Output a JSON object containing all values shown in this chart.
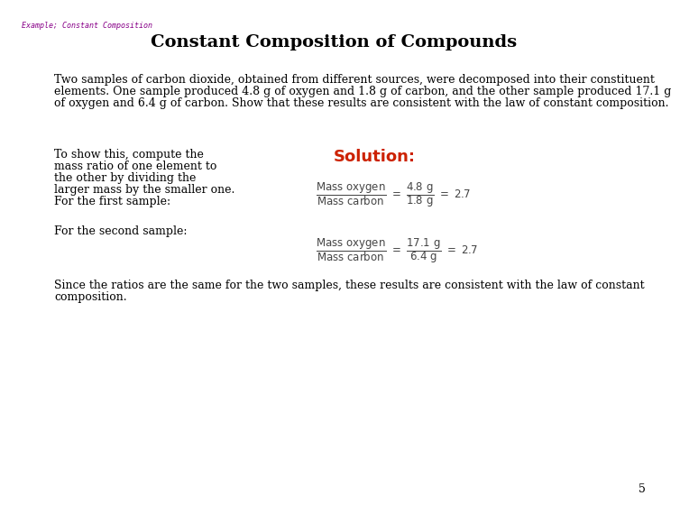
{
  "background_color": "#ffffff",
  "header_label": "Example; Constant Composition",
  "header_color": "#880088",
  "header_fontsize": 6,
  "title": "Constant Composition of Compounds",
  "title_fontsize": 14,
  "body_text_line1": "Two samples of carbon dioxide, obtained from different sources, were decomposed into their constituent",
  "body_text_line2": "elements. One sample produced 4.8 g of oxygen and 1.8 g of carbon, and the other sample produced 17.1 g",
  "body_text_line3": "of oxygen and 6.4 g of carbon. Show that these results are consistent with the law of constant composition.",
  "body_fontsize": 9,
  "left_text_lines": [
    "To show this, compute the",
    "mass ratio of one element to",
    "the other by dividing the",
    "larger mass by the smaller one.",
    "For the first sample:"
  ],
  "left2_text": "For the second sample:",
  "solution_label": "Solution:",
  "solution_color": "#cc2200",
  "solution_fontsize": 13,
  "conclusion_line1": "Since the ratios are the same for the two samples, these results are consistent with the law of constant",
  "conclusion_line2": "composition.",
  "page_number": "5",
  "page_fontsize": 9,
  "eq_fontsize": 8.5
}
